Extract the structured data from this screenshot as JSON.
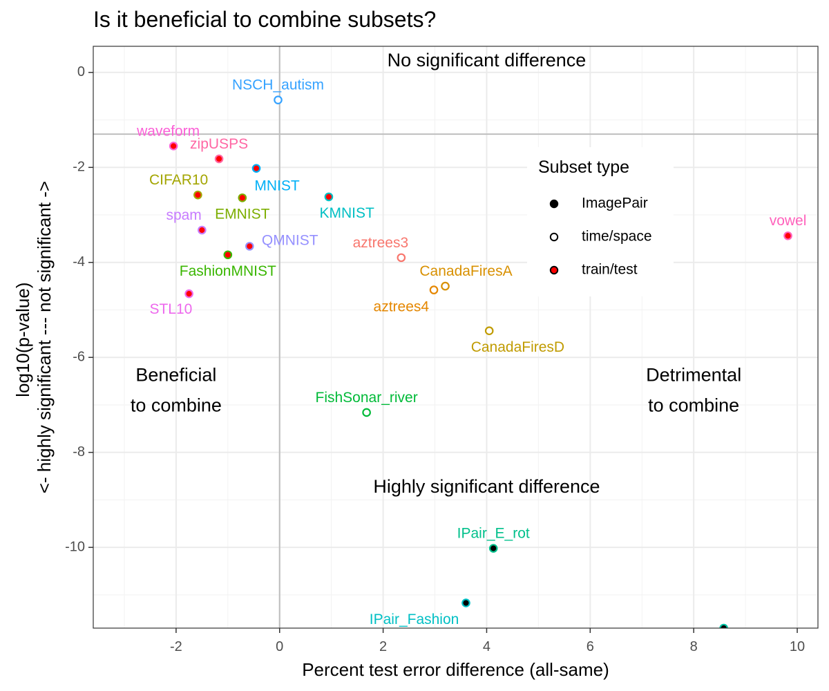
{
  "chart_data": {
    "type": "scatter",
    "title": "Is it beneficial to combine subsets?",
    "xlabel": "Percent test error difference (all-same)",
    "ylabel_lines": [
      "log10(p-value)",
      "<- highly significant --- not significant ->"
    ],
    "xlim": [
      -3.6,
      10.4
    ],
    "ylim": [
      -11.7,
      0.55
    ],
    "x_ticks": [
      -2,
      0,
      2,
      4,
      6,
      8,
      10
    ],
    "x_tick_labels": [
      "-2",
      "0",
      "2",
      "4",
      "6",
      "8",
      "10"
    ],
    "y_ticks": [
      0,
      -2,
      -4,
      -6,
      -8,
      -10
    ],
    "y_tick_labels": [
      "0",
      "-2",
      "-4",
      "-6",
      "-8",
      "-10"
    ],
    "reference_lines": {
      "x": 0,
      "y": -1.3
    },
    "grid": true,
    "legend": {
      "title": "Subset type",
      "position": "top-right",
      "entries": [
        {
          "label": "ImagePair",
          "fill": "#000000",
          "stroke": "#000000"
        },
        {
          "label": "time/space",
          "fill": "#ffffff",
          "stroke": "#000000"
        },
        {
          "label": "train/test",
          "fill": "#ff0000",
          "stroke": "#000000"
        }
      ]
    },
    "region_labels": [
      {
        "lines": [
          "No significant difference"
        ],
        "x": 4.0,
        "y": 0.13
      },
      {
        "lines": [
          "Beneficial",
          "to combine"
        ],
        "x": -2.0,
        "y": -6.5
      },
      {
        "lines": [
          "Detrimental",
          "to combine"
        ],
        "x": 8.0,
        "y": -6.5
      },
      {
        "lines": [
          "Highly significant difference"
        ],
        "x": 4.0,
        "y": -8.85
      }
    ],
    "points": [
      {
        "label": "NSCH_autism",
        "x": -0.03,
        "y": -0.58,
        "type": "time/space",
        "color": "#35a2ff",
        "lx": -0.03,
        "ly": -0.28
      },
      {
        "label": "waveform",
        "x": -2.05,
        "y": -1.55,
        "type": "train/test",
        "color": "#fb61d7",
        "lx": -2.15,
        "ly": -1.25
      },
      {
        "label": "zipUSPS",
        "x": -1.17,
        "y": -1.82,
        "type": "train/test",
        "color": "#ff67a4",
        "lx": -1.17,
        "ly": -1.52
      },
      {
        "label": "MNIST",
        "x": -0.45,
        "y": -2.02,
        "type": "train/test",
        "color": "#00b0f6",
        "lx": -0.05,
        "ly": -2.4
      },
      {
        "label": "CIFAR10",
        "x": -1.58,
        "y": -2.58,
        "type": "train/test",
        "color": "#a3a500",
        "lx": -1.95,
        "ly": -2.28
      },
      {
        "label": "EMNIST",
        "x": -0.72,
        "y": -2.64,
        "type": "train/test",
        "color": "#7cae00",
        "lx": -0.72,
        "ly": -3.0
      },
      {
        "label": "KMNIST",
        "x": 0.95,
        "y": -2.62,
        "type": "train/test",
        "color": "#00bfc4",
        "lx": 1.3,
        "ly": -2.98
      },
      {
        "label": "spam",
        "x": -1.5,
        "y": -3.32,
        "type": "train/test",
        "color": "#c77cff",
        "lx": -1.85,
        "ly": -3.02
      },
      {
        "label": "QMNIST",
        "x": -0.58,
        "y": -3.66,
        "type": "train/test",
        "color": "#9590ff",
        "lx": 0.2,
        "ly": -3.55
      },
      {
        "label": "FashionMNIST",
        "x": -1.0,
        "y": -3.84,
        "type": "train/test",
        "color": "#39b600",
        "lx": -1.0,
        "ly": -4.2
      },
      {
        "label": "aztrees3",
        "x": 2.35,
        "y": -3.9,
        "type": "time/space",
        "color": "#f8766d",
        "lx": 1.95,
        "ly": -3.6
      },
      {
        "label": "CanadaFiresA",
        "x": 3.2,
        "y": -4.5,
        "type": "time/space",
        "color": "#d89000",
        "lx": 3.6,
        "ly": -4.2
      },
      {
        "label": "aztrees4",
        "x": 2.98,
        "y": -4.58,
        "type": "time/space",
        "color": "#e58700",
        "lx": 2.35,
        "ly": -4.95
      },
      {
        "label": "STL10",
        "x": -1.75,
        "y": -4.66,
        "type": "train/test",
        "color": "#ed68ed",
        "lx": -2.1,
        "ly": -5.0
      },
      {
        "label": "CanadaFiresD",
        "x": 4.05,
        "y": -5.44,
        "type": "time/space",
        "color": "#c09b00",
        "lx": 4.6,
        "ly": -5.8
      },
      {
        "label": "vowel",
        "x": 9.82,
        "y": -3.44,
        "type": "train/test",
        "color": "#ff62bc",
        "lx": 9.82,
        "ly": -3.14
      },
      {
        "label": "FishSonar_river",
        "x": 1.68,
        "y": -7.16,
        "type": "time/space",
        "color": "#00ba38",
        "lx": 1.68,
        "ly": -6.86
      },
      {
        "label": "IPair_E_rot",
        "x": 4.13,
        "y": -10.02,
        "type": "ImagePair",
        "color": "#00c08b",
        "lx": 4.13,
        "ly": -9.72
      },
      {
        "label": "IPair_Fashion",
        "x": 3.6,
        "y": -11.17,
        "type": "ImagePair",
        "color": "#00bfc4",
        "lx": 2.6,
        "ly": -11.53
      },
      {
        "label": "",
        "x": 8.58,
        "y": -11.7,
        "type": "ImagePair",
        "color": "#00c1a3",
        "lx": 8.58,
        "ly": -11.7
      }
    ]
  }
}
